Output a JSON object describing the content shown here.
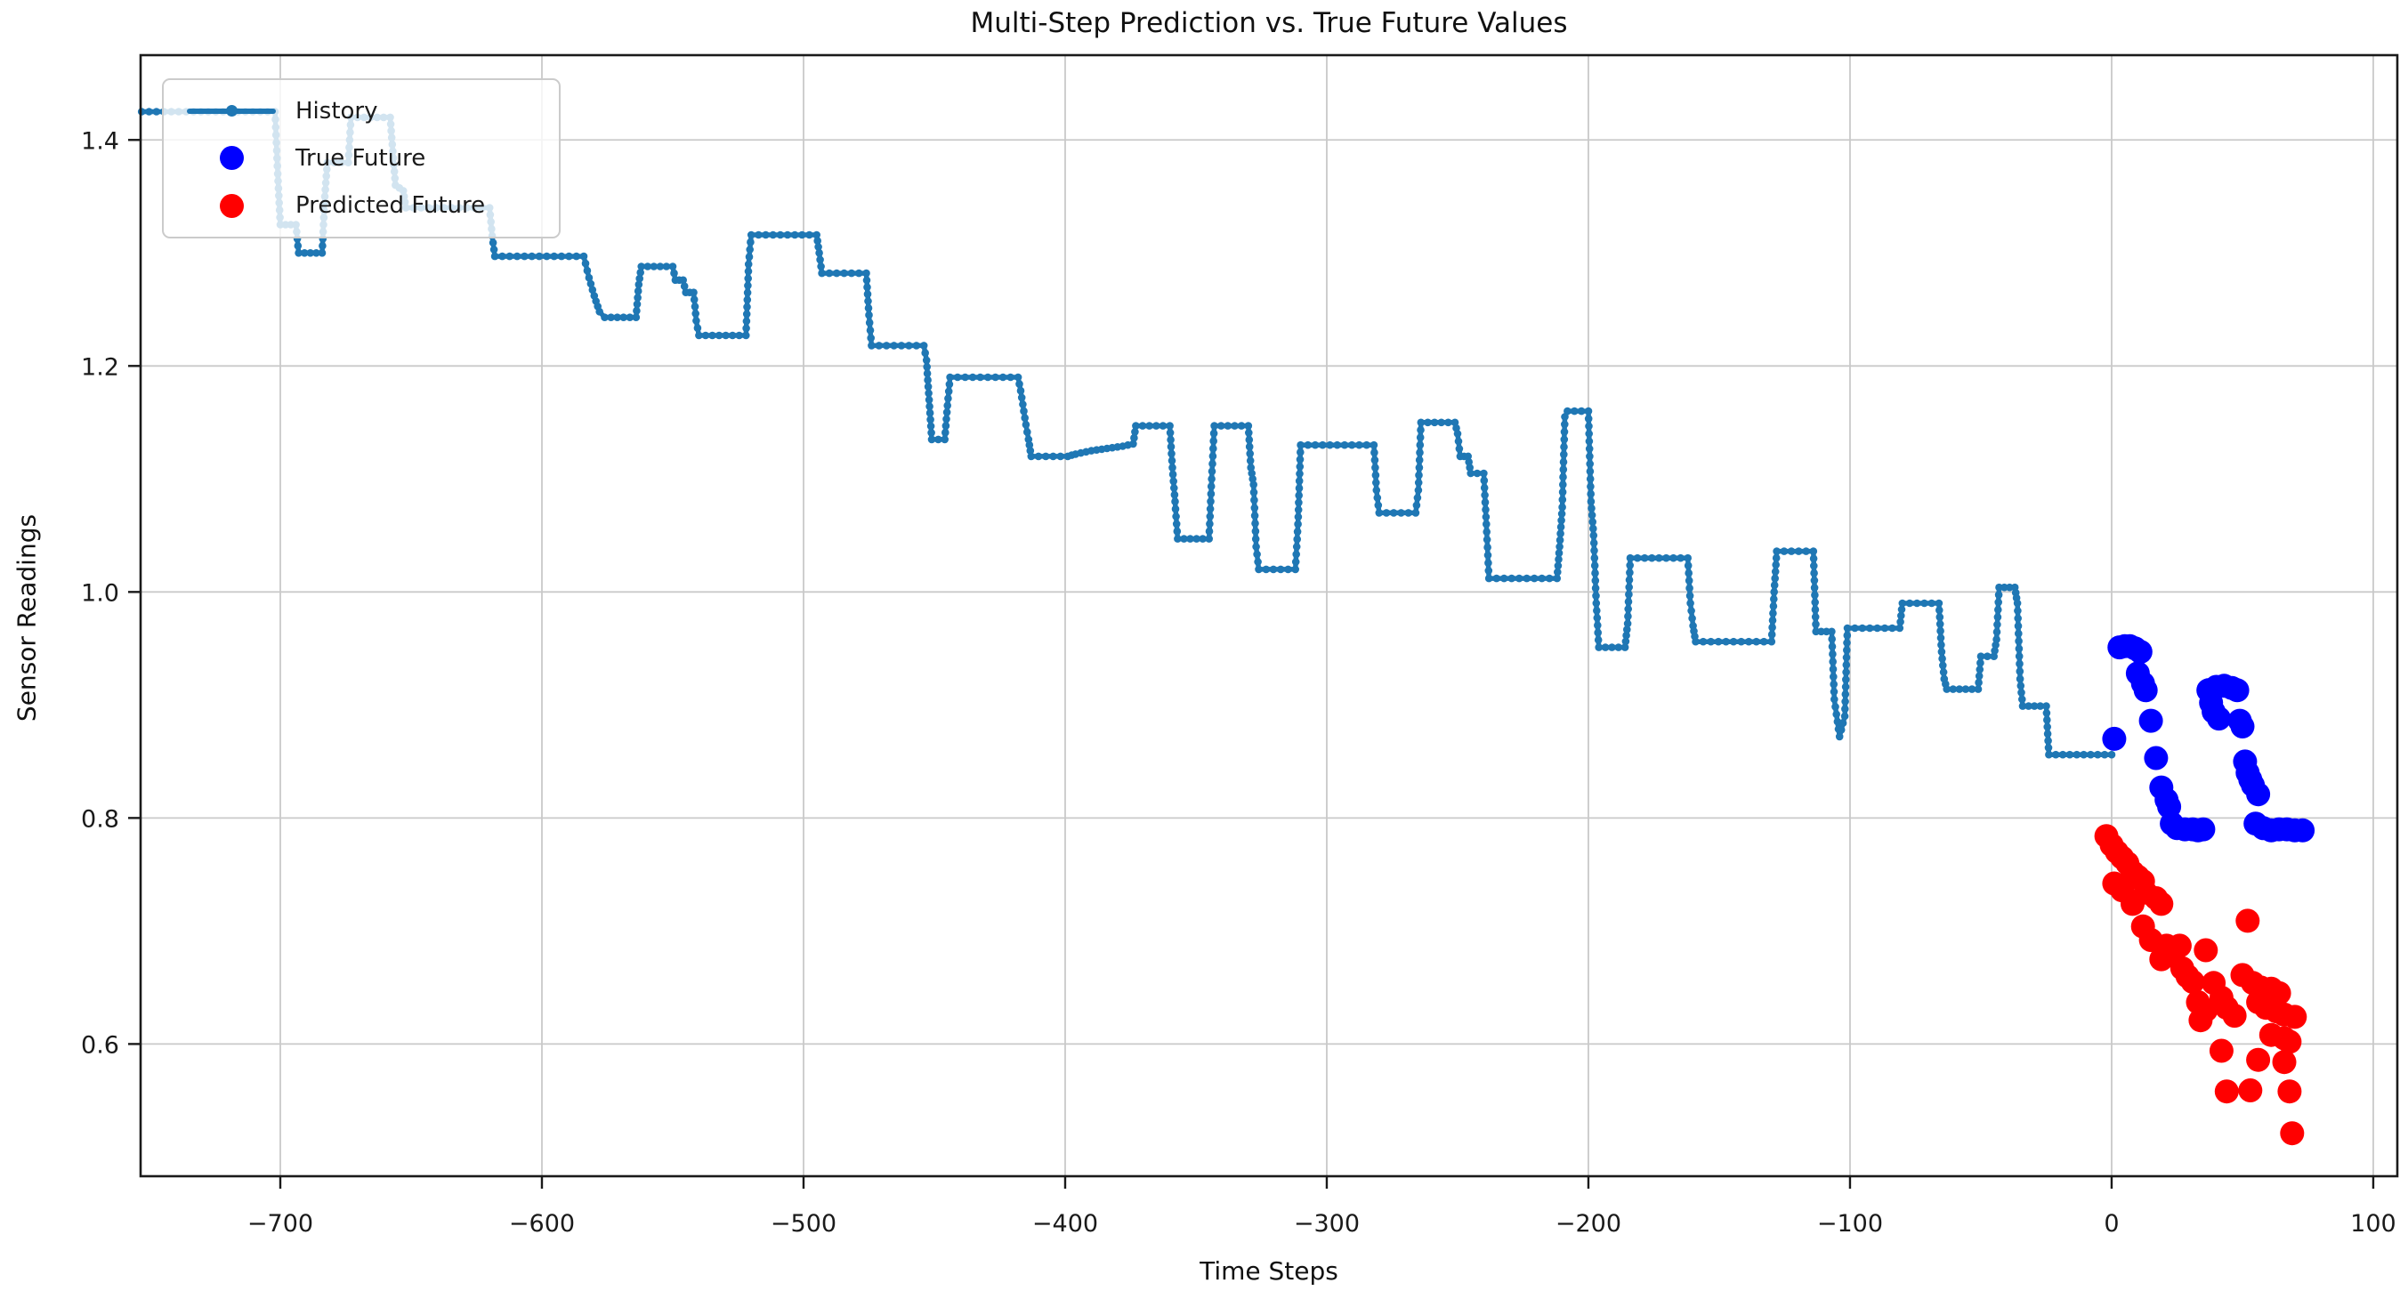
{
  "chart_data": {
    "type": "line",
    "title": "Multi-Step Prediction vs. True Future Values",
    "xlabel": "Time Steps",
    "ylabel": "Sensor Readings",
    "xlim": [
      -753.4,
      109.2
    ],
    "ylim": [
      0.483,
      1.475
    ],
    "grid": true,
    "grid_color": "#c9c9c9",
    "frame_color": "#1a1a1a",
    "background": "#ffffff",
    "legend_position": "upper left",
    "xticks": [
      {
        "v": -700,
        "label": "−700"
      },
      {
        "v": -600,
        "label": "−600"
      },
      {
        "v": -500,
        "label": "−500"
      },
      {
        "v": -400,
        "label": "−400"
      },
      {
        "v": -300,
        "label": "−300"
      },
      {
        "v": -200,
        "label": "−200"
      },
      {
        "v": -100,
        "label": "−100"
      },
      {
        "v": 0,
        "label": "0"
      },
      {
        "v": 100,
        "label": "100"
      }
    ],
    "yticks": [
      {
        "v": 0.6,
        "label": "0.6"
      },
      {
        "v": 0.8,
        "label": "0.8"
      },
      {
        "v": 1.0,
        "label": "1.0"
      },
      {
        "v": 1.2,
        "label": "1.2"
      },
      {
        "v": 1.4,
        "label": "1.4"
      }
    ],
    "series": [
      {
        "name": "History",
        "type": "line-markers",
        "color": "#1f77b4",
        "points": [
          [
            -753,
            1.425
          ],
          [
            -702,
            1.425
          ],
          [
            -701,
            1.37
          ],
          [
            -700,
            1.325
          ],
          [
            -694,
            1.325
          ],
          [
            -693,
            1.3
          ],
          [
            -684,
            1.3
          ],
          [
            -683,
            1.35
          ],
          [
            -682,
            1.38
          ],
          [
            -674,
            1.38
          ],
          [
            -673,
            1.42
          ],
          [
            -658,
            1.42
          ],
          [
            -657,
            1.39
          ],
          [
            -656,
            1.36
          ],
          [
            -653,
            1.355
          ],
          [
            -652,
            1.34
          ],
          [
            -620,
            1.34
          ],
          [
            -619,
            1.315
          ],
          [
            -618,
            1.297
          ],
          [
            -584,
            1.297
          ],
          [
            -582,
            1.278
          ],
          [
            -580,
            1.262
          ],
          [
            -578,
            1.248
          ],
          [
            -576,
            1.243
          ],
          [
            -564,
            1.243
          ],
          [
            -563,
            1.272
          ],
          [
            -562,
            1.288
          ],
          [
            -550,
            1.288
          ],
          [
            -549,
            1.276
          ],
          [
            -546,
            1.276
          ],
          [
            -545,
            1.265
          ],
          [
            -542,
            1.265
          ],
          [
            -541,
            1.24
          ],
          [
            -540,
            1.227
          ],
          [
            -522,
            1.227
          ],
          [
            -521,
            1.29
          ],
          [
            -520,
            1.316
          ],
          [
            -495,
            1.316
          ],
          [
            -494,
            1.3
          ],
          [
            -493,
            1.282
          ],
          [
            -476,
            1.282
          ],
          [
            -475,
            1.245
          ],
          [
            -474,
            1.218
          ],
          [
            -454,
            1.218
          ],
          [
            -453,
            1.205
          ],
          [
            -452,
            1.17
          ],
          [
            -451,
            1.135
          ],
          [
            -446,
            1.135
          ],
          [
            -445,
            1.165
          ],
          [
            -444,
            1.19
          ],
          [
            -418,
            1.19
          ],
          [
            -417,
            1.178
          ],
          [
            -415,
            1.148
          ],
          [
            -414,
            1.135
          ],
          [
            -413,
            1.12
          ],
          [
            -399,
            1.12
          ],
          [
            -396,
            1.122
          ],
          [
            -390,
            1.125
          ],
          [
            -384,
            1.127
          ],
          [
            -378,
            1.129
          ],
          [
            -374,
            1.131
          ],
          [
            -373,
            1.147
          ],
          [
            -360,
            1.147
          ],
          [
            -359,
            1.11
          ],
          [
            -358,
            1.08
          ],
          [
            -357,
            1.047
          ],
          [
            -345,
            1.047
          ],
          [
            -344,
            1.1
          ],
          [
            -343,
            1.147
          ],
          [
            -330,
            1.147
          ],
          [
            -329,
            1.11
          ],
          [
            -328,
            1.095
          ],
          [
            -327,
            1.04
          ],
          [
            -326,
            1.02
          ],
          [
            -312,
            1.02
          ],
          [
            -311,
            1.06
          ],
          [
            -310,
            1.13
          ],
          [
            -282,
            1.13
          ],
          [
            -281,
            1.09
          ],
          [
            -280,
            1.07
          ],
          [
            -266,
            1.07
          ],
          [
            -265,
            1.09
          ],
          [
            -264,
            1.15
          ],
          [
            -251,
            1.15
          ],
          [
            -250,
            1.14
          ],
          [
            -249,
            1.12
          ],
          [
            -246,
            1.12
          ],
          [
            -245,
            1.105
          ],
          [
            -240,
            1.105
          ],
          [
            -239,
            1.06
          ],
          [
            -238,
            1.012
          ],
          [
            -212,
            1.012
          ],
          [
            -211,
            1.04
          ],
          [
            -210,
            1.075
          ],
          [
            -209,
            1.155
          ],
          [
            -208,
            1.16
          ],
          [
            -200,
            1.16
          ],
          [
            -199,
            1.08
          ],
          [
            -198,
            1.05
          ],
          [
            -197,
            0.99
          ],
          [
            -196,
            0.951
          ],
          [
            -186,
            0.951
          ],
          [
            -185,
            0.972
          ],
          [
            -184,
            1.03
          ],
          [
            -162,
            1.03
          ],
          [
            -161,
            0.99
          ],
          [
            -160,
            0.97
          ],
          [
            -159,
            0.956
          ],
          [
            -130,
            0.956
          ],
          [
            -129,
            1.0
          ],
          [
            -128,
            1.036
          ],
          [
            -114,
            1.036
          ],
          [
            -113,
            0.965
          ],
          [
            -107,
            0.965
          ],
          [
            -106,
            0.905
          ],
          [
            -104,
            0.872
          ],
          [
            -102,
            0.89
          ],
          [
            -101,
            0.968
          ],
          [
            -81,
            0.968
          ],
          [
            -80,
            0.99
          ],
          [
            -66,
            0.99
          ],
          [
            -65,
            0.947
          ],
          [
            -64,
            0.923
          ],
          [
            -63,
            0.914
          ],
          [
            -51,
            0.914
          ],
          [
            -50,
            0.943
          ],
          [
            -45,
            0.943
          ],
          [
            -44,
            0.958
          ],
          [
            -43,
            1.004
          ],
          [
            -37,
            1.004
          ],
          [
            -36,
            0.99
          ],
          [
            -35,
            0.923
          ],
          [
            -34,
            0.899
          ],
          [
            -25,
            0.899
          ],
          [
            -24,
            0.856
          ],
          [
            0,
            0.856
          ]
        ]
      },
      {
        "name": "True Future",
        "type": "scatter",
        "color": "#0000ff",
        "points": [
          [
            1,
            0.87
          ],
          [
            3,
            0.951
          ],
          [
            5,
            0.952
          ],
          [
            7,
            0.952
          ],
          [
            9,
            0.95
          ],
          [
            10,
            0.928
          ],
          [
            11,
            0.947
          ],
          [
            12,
            0.919
          ],
          [
            13,
            0.913
          ],
          [
            15,
            0.886
          ],
          [
            17,
            0.853
          ],
          [
            19,
            0.827
          ],
          [
            21,
            0.816
          ],
          [
            22,
            0.81
          ],
          [
            23,
            0.795
          ],
          [
            25,
            0.791
          ],
          [
            28,
            0.79
          ],
          [
            31,
            0.79
          ],
          [
            33,
            0.789
          ],
          [
            35,
            0.79
          ],
          [
            37,
            0.913
          ],
          [
            38,
            0.902
          ],
          [
            39,
            0.894
          ],
          [
            40,
            0.916
          ],
          [
            41,
            0.888
          ],
          [
            43,
            0.917
          ],
          [
            46,
            0.915
          ],
          [
            48,
            0.913
          ],
          [
            49,
            0.886
          ],
          [
            50,
            0.881
          ],
          [
            51,
            0.85
          ],
          [
            52,
            0.84
          ],
          [
            53,
            0.834
          ],
          [
            54,
            0.829
          ],
          [
            55,
            0.795
          ],
          [
            56,
            0.821
          ],
          [
            58,
            0.791
          ],
          [
            61,
            0.789
          ],
          [
            64,
            0.79
          ],
          [
            67,
            0.79
          ],
          [
            70,
            0.789
          ],
          [
            73,
            0.789
          ]
        ]
      },
      {
        "name": "Predicted Future",
        "type": "scatter",
        "color": "#ff0000",
        "points": [
          [
            -2,
            0.784
          ],
          [
            0,
            0.776
          ],
          [
            1,
            0.742
          ],
          [
            2,
            0.77
          ],
          [
            4,
            0.765
          ],
          [
            4,
            0.736
          ],
          [
            6,
            0.76
          ],
          [
            8,
            0.752
          ],
          [
            8,
            0.724
          ],
          [
            10,
            0.748
          ],
          [
            12,
            0.744
          ],
          [
            12,
            0.704
          ],
          [
            13,
            0.734
          ],
          [
            15,
            0.692
          ],
          [
            17,
            0.729
          ],
          [
            19,
            0.724
          ],
          [
            19,
            0.675
          ],
          [
            21,
            0.687
          ],
          [
            23,
            0.68
          ],
          [
            26,
            0.687
          ],
          [
            27,
            0.667
          ],
          [
            29,
            0.66
          ],
          [
            31,
            0.655
          ],
          [
            33,
            0.637
          ],
          [
            34,
            0.621
          ],
          [
            36,
            0.683
          ],
          [
            36,
            0.63
          ],
          [
            39,
            0.654
          ],
          [
            42,
            0.641
          ],
          [
            42,
            0.594
          ],
          [
            44,
            0.632
          ],
          [
            44,
            0.558
          ],
          [
            47,
            0.625
          ],
          [
            50,
            0.661
          ],
          [
            52,
            0.709
          ],
          [
            53,
            0.559
          ],
          [
            54,
            0.654
          ],
          [
            56,
            0.637
          ],
          [
            56,
            0.586
          ],
          [
            57,
            0.65
          ],
          [
            59,
            0.632
          ],
          [
            61,
            0.649
          ],
          [
            61,
            0.608
          ],
          [
            63,
            0.629
          ],
          [
            64,
            0.645
          ],
          [
            66,
            0.626
          ],
          [
            66,
            0.605
          ],
          [
            66,
            0.584
          ],
          [
            68,
            0.602
          ],
          [
            68,
            0.558
          ],
          [
            69,
            0.521
          ],
          [
            70,
            0.624
          ]
        ]
      }
    ]
  }
}
